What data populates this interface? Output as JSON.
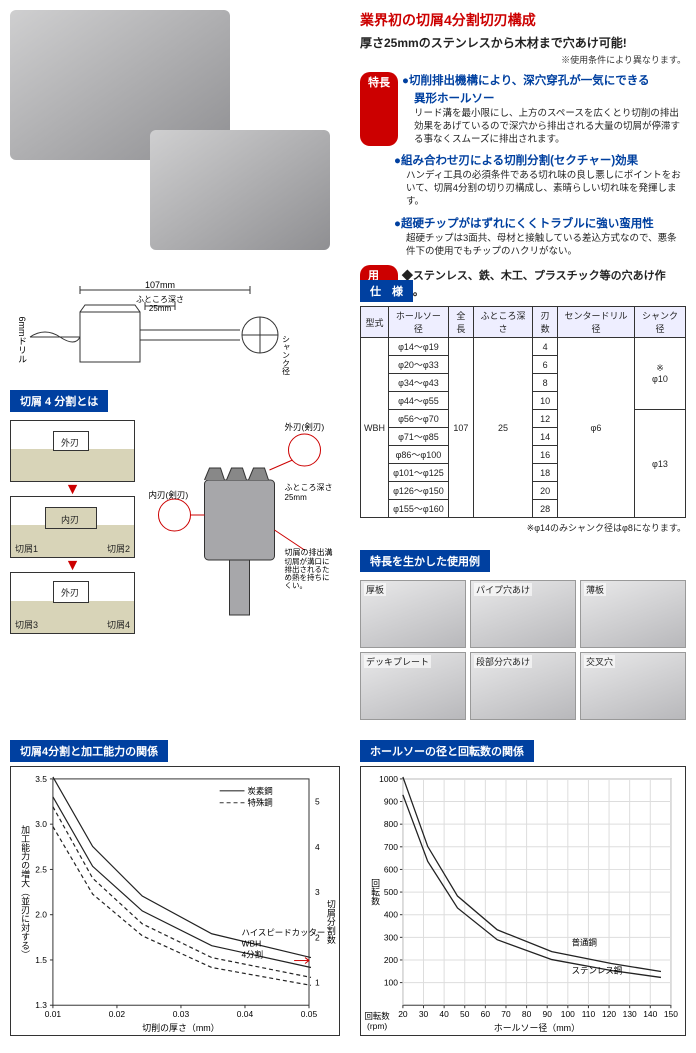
{
  "headline": "業界初の切屑4分割切刃構成",
  "subhead": "厚さ25mmのステンレスから木材まで穴あけ可能!",
  "note_tiny": "※使用条件により異なります。",
  "badges": {
    "features": "特長",
    "usage": "用途"
  },
  "features": [
    {
      "title": "●切削排出機構により、深穴穿孔が一気にできる",
      "subtitle": "異形ホールソー",
      "body": "リード溝を最小限にし、上方のスペースを広くとり切削の排出効果をあげているので深穴から排出される大量の切屑が停滞する事なくスムーズに排出されます。"
    },
    {
      "title": "●組み合わせ刃による切削分割(セクチャー)効果",
      "subtitle": "",
      "body": "ハンディ工具の必須条件である切れ味の良し悪しにポイントをおいて、切屑4分割の切り刃構成し、素晴らしい切れ味を発揮します。"
    },
    {
      "title": "●超硬チップがはずれにくくトラブルに強い蛮用性",
      "subtitle": "",
      "body": "超硬チップは3面共、母材と接触している差込方式なので、悪条件下の使用でもチップのハクリがない。"
    }
  ],
  "usage_text": "◆ステンレス、鉄、木工、プラスチック等の穴あけ作業。",
  "diagram": {
    "width_label": "107mm",
    "depth_label": "ふところ深さ\n25mm",
    "drill_label": "6mmドリル",
    "shank_label": "シャンク径"
  },
  "chip_section_title": "切屑 4 分割とは",
  "chip_boxes": {
    "outer": "外刃",
    "inner": "内刃",
    "c1": "切屑1",
    "c2": "切屑2",
    "c3": "切屑3",
    "c4": "切屑4"
  },
  "chip_callouts": {
    "outer_blade": "外刃(剣刃)",
    "inner_blade": "内刃(剣刃)",
    "depth": "ふところ深さ\n25mm",
    "groove": "切屑の排出溝\n切屑が溝口に排出されるため熱を持ちにくい。"
  },
  "spec_title": "仕　様",
  "spec": {
    "headers": [
      "型式",
      "ホールソー径",
      "全長",
      "ふところ深さ",
      "刃数",
      "センタードリル径",
      "シャンク径"
    ],
    "model": "WBH",
    "full_length": "107",
    "depth": "25",
    "center_drill": "φ6",
    "rows": [
      {
        "dia": "φ14～φ19",
        "blades": "4"
      },
      {
        "dia": "φ20～φ33",
        "blades": "6"
      },
      {
        "dia": "φ34～φ43",
        "blades": "8"
      },
      {
        "dia": "φ44～φ55",
        "blades": "10"
      },
      {
        "dia": "φ56～φ70",
        "blades": "12"
      },
      {
        "dia": "φ71～φ85",
        "blades": "14"
      },
      {
        "dia": "φ86～φ100",
        "blades": "16"
      },
      {
        "dia": "φ101～φ125",
        "blades": "18"
      },
      {
        "dia": "φ126～φ150",
        "blades": "20"
      },
      {
        "dia": "φ155～φ160",
        "blades": "28"
      }
    ],
    "shank_top": "※\nφ10",
    "shank_bot": "φ13",
    "note": "※φ14のみシャンク径はφ8になります。"
  },
  "examples_title": "特長を生かした使用例",
  "examples": [
    "厚板",
    "パイプ穴あけ",
    "薄板",
    "デッキプレート",
    "段部分穴あけ",
    "交叉穴"
  ],
  "chart1": {
    "title": "切屑4分割と加工能力の関係",
    "xlabel": "切削の厚さ（mm）",
    "ylabel": "加工能力の増大（並刃に対する）",
    "rlabel": "切屑分割数",
    "legend_solid": "炭素鋼",
    "legend_dash": "特殊鋼",
    "annot": "ハイスピードカッター\nWBH\n4分割",
    "xticks": [
      "0.01",
      "0.02",
      "0.03",
      "0.04",
      "0.05"
    ],
    "yticks": [
      "1.3",
      "1.5",
      "2.0",
      "2.5",
      "3.0",
      "3.5"
    ],
    "rticks": [
      "1",
      "2",
      "3",
      "4",
      "5"
    ],
    "solid1_pts": [
      [
        0,
        230
      ],
      [
        40,
        160
      ],
      [
        90,
        110
      ],
      [
        160,
        72
      ],
      [
        260,
        48
      ]
    ],
    "solid2_pts": [
      [
        0,
        210
      ],
      [
        40,
        140
      ],
      [
        90,
        95
      ],
      [
        160,
        60
      ],
      [
        260,
        38
      ]
    ],
    "dash1_pts": [
      [
        0,
        200
      ],
      [
        40,
        128
      ],
      [
        90,
        82
      ],
      [
        160,
        48
      ],
      [
        260,
        28
      ]
    ],
    "dash2_pts": [
      [
        0,
        180
      ],
      [
        40,
        112
      ],
      [
        90,
        70
      ],
      [
        160,
        38
      ],
      [
        260,
        20
      ]
    ],
    "curve_color": "#222"
  },
  "chart2": {
    "title": "ホールソーの径と回転数の関係",
    "xlabel": "ホールソー径（mm）",
    "ylabel": "回転数\n(rpm)",
    "xticks": [
      "20",
      "30",
      "40",
      "50",
      "60",
      "70",
      "80",
      "90",
      "100",
      "110",
      "120",
      "130",
      "140",
      "150"
    ],
    "yticks": [
      "100",
      "200",
      "300",
      "400",
      "500",
      "600",
      "700",
      "800",
      "900",
      "1000"
    ],
    "series": [
      {
        "label": "普通鋼",
        "pts": [
          [
            0,
            230
          ],
          [
            25,
            160
          ],
          [
            55,
            110
          ],
          [
            95,
            76
          ],
          [
            150,
            54
          ],
          [
            210,
            42
          ],
          [
            260,
            34
          ]
        ]
      },
      {
        "label": "ステンレス鋼",
        "pts": [
          [
            0,
            212
          ],
          [
            25,
            145
          ],
          [
            55,
            98
          ],
          [
            95,
            66
          ],
          [
            150,
            46
          ],
          [
            210,
            35
          ],
          [
            260,
            28
          ]
        ]
      }
    ],
    "curve_color": "#222"
  },
  "colors": {
    "blue": "#0040a0",
    "red": "#c00",
    "grid": "#333"
  }
}
